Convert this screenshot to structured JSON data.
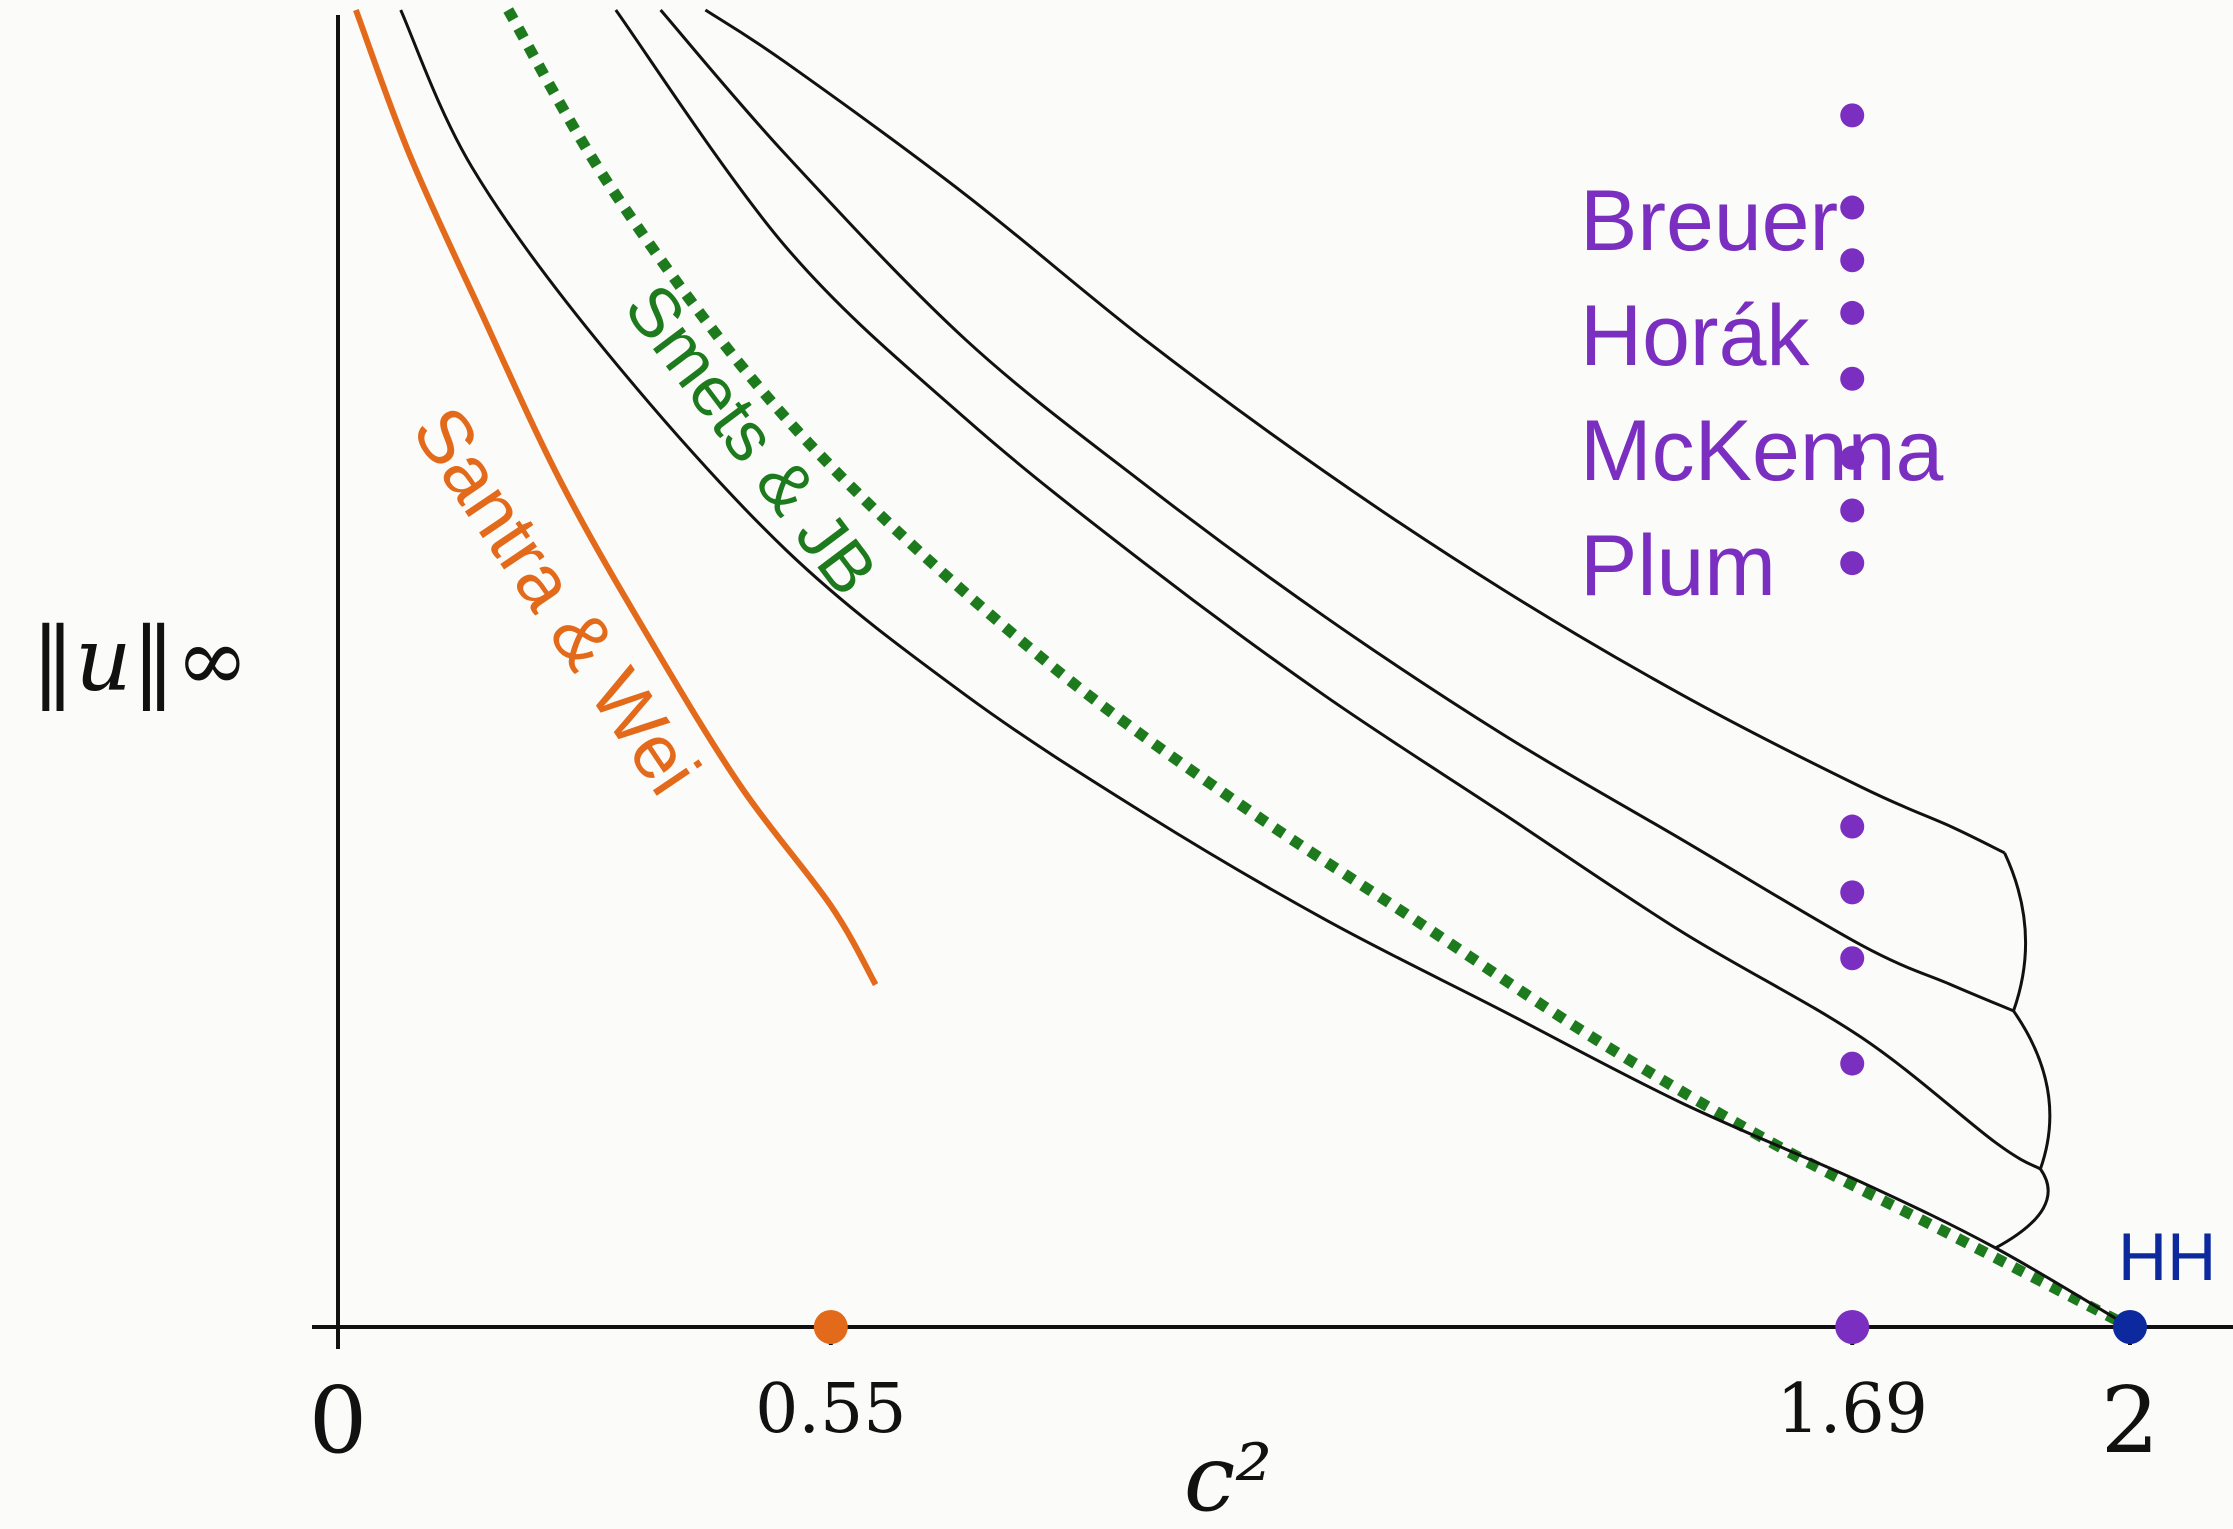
{
  "chart_data": {
    "type": "line",
    "title": "",
    "xlabel": "c²",
    "ylabel": "‖u‖∞",
    "xlim": [
      0,
      2.05
    ],
    "ylim": [
      0,
      1
    ],
    "grid": false,
    "x_ticks": [
      {
        "value": 0,
        "label": "0"
      },
      {
        "value": 0.55,
        "label": "0.55"
      },
      {
        "value": 1.69,
        "label": "1.69"
      },
      {
        "value": 2,
        "label": "2"
      }
    ],
    "series": [
      {
        "name": "Santra & Wei",
        "color": "#e36a1b",
        "style": "solid",
        "x": [
          0.02,
          0.08,
          0.16,
          0.25,
          0.35,
          0.45,
          0.55,
          0.6
        ],
        "y": [
          1.0,
          0.89,
          0.77,
          0.64,
          0.52,
          0.41,
          0.32,
          0.26
        ]
      },
      {
        "name": "Smets & JB",
        "color": "#1d7a1d",
        "style": "dotted",
        "x": [
          0.19,
          0.3,
          0.45,
          0.6,
          0.8,
          1.0,
          1.2,
          1.4,
          1.6,
          1.8,
          2.0
        ],
        "y": [
          1.0,
          0.87,
          0.73,
          0.62,
          0.5,
          0.4,
          0.31,
          0.22,
          0.14,
          0.07,
          0.0
        ]
      },
      {
        "name": "",
        "color": "#111111",
        "style": "solid",
        "x": [
          2.0,
          1.85,
          1.7,
          1.5,
          1.3,
          1.1,
          0.9,
          0.7,
          0.5,
          0.3,
          0.15,
          0.07
        ],
        "y": [
          0.0,
          0.06,
          0.11,
          0.17,
          0.24,
          0.31,
          0.39,
          0.48,
          0.59,
          0.74,
          0.88,
          1.0
        ]
      },
      {
        "name": "",
        "color": "#111111",
        "style": "solid",
        "x": [
          1.9,
          1.85,
          1.7,
          1.5,
          1.3,
          1.1,
          0.9,
          0.7,
          0.5,
          0.31
        ],
        "y": [
          0.12,
          0.14,
          0.22,
          0.3,
          0.39,
          0.48,
          0.58,
          0.69,
          0.82,
          1.0
        ]
      },
      {
        "name": "",
        "color": "#111111",
        "style": "solid",
        "x": [
          1.87,
          1.8,
          1.7,
          1.5,
          1.3,
          1.1,
          0.9,
          0.7,
          0.5,
          0.36
        ],
        "y": [
          0.24,
          0.26,
          0.29,
          0.37,
          0.45,
          0.54,
          0.64,
          0.75,
          0.89,
          1.0
        ]
      },
      {
        "name": "",
        "color": "#111111",
        "style": "solid",
        "x": [
          1.86,
          1.8,
          1.7,
          1.5,
          1.3,
          1.1,
          0.9,
          0.7,
          0.5,
          0.41
        ],
        "y": [
          0.36,
          0.38,
          0.41,
          0.48,
          0.56,
          0.65,
          0.75,
          0.86,
          0.96,
          1.0
        ]
      }
    ],
    "markers": [
      {
        "x": 0.55,
        "y": 0,
        "color": "#e36a1b"
      },
      {
        "x": 1.69,
        "y": 0,
        "color": "#7b2fc0"
      },
      {
        "x": 2.0,
        "y": 0,
        "color": "#0c2a9e"
      }
    ],
    "purple_dots": {
      "color": "#7b2fc0",
      "x": 1.69,
      "y": [
        0.92,
        0.85,
        0.81,
        0.77,
        0.72,
        0.66,
        0.62,
        0.58,
        0.38,
        0.33,
        0.28,
        0.2
      ]
    },
    "annotations": {
      "hh": "HH",
      "names": [
        "Breuer",
        "Horák",
        "McKenna",
        "Plum"
      ]
    }
  }
}
